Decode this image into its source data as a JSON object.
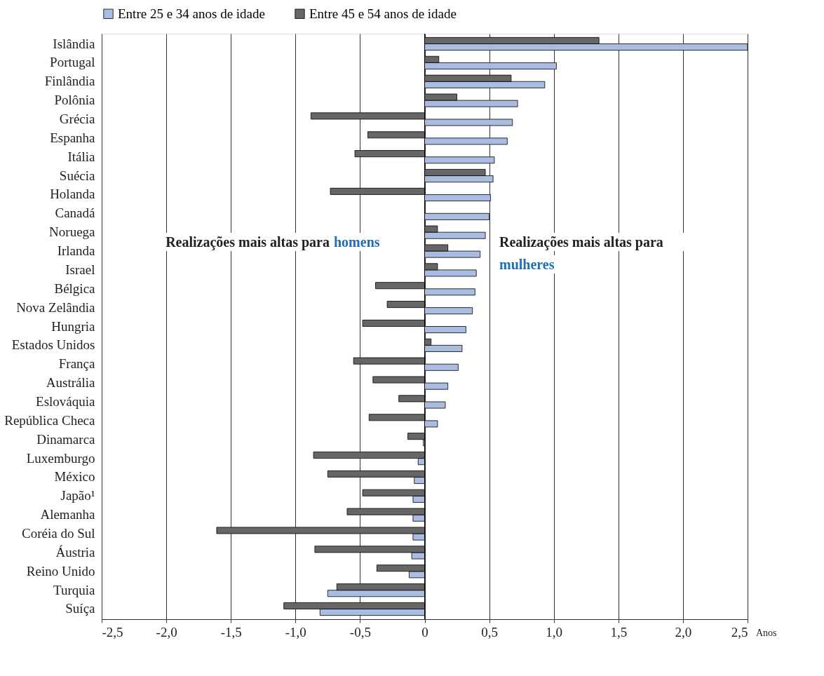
{
  "chart_data": {
    "type": "bar",
    "orientation": "horizontal",
    "categories": [
      "Islândia",
      "Portugal",
      "Finlândia",
      "Polônia",
      "Grécia",
      "Espanha",
      "Itália",
      "Suécia",
      "Holanda",
      "Canadá",
      "Noruega",
      "Irlanda",
      "Israel",
      "Bélgica",
      "Nova Zelândia",
      "Hungria",
      "Estados Unidos",
      "França",
      "Austrália",
      "Eslováquia",
      "República Checa",
      "Dinamarca",
      "Luxemburgo",
      "México",
      "Japão¹",
      "Alemanha",
      "Coréia do Sul",
      "Áustria",
      "Reino Unido",
      "Turquia",
      "Suíça"
    ],
    "series": [
      {
        "name": "Entre 25 e 34 anos de idade",
        "color": "#a9bde3",
        "values": [
          2.5,
          1.02,
          0.93,
          0.72,
          0.68,
          0.64,
          0.54,
          0.53,
          0.51,
          0.5,
          0.47,
          0.43,
          0.4,
          0.39,
          0.37,
          0.32,
          0.29,
          0.26,
          0.18,
          0.16,
          0.1,
          -0.01,
          -0.05,
          -0.08,
          -0.09,
          -0.09,
          -0.09,
          -0.1,
          -0.12,
          -0.75,
          -0.81
        ]
      },
      {
        "name": "Entre 45 e 54 anos de idade",
        "color": "#666666",
        "values": [
          1.35,
          0.11,
          0.67,
          0.25,
          -0.88,
          -0.44,
          -0.54,
          0.47,
          -0.73,
          null,
          0.1,
          0.18,
          0.1,
          -0.38,
          -0.29,
          -0.48,
          0.05,
          -0.55,
          -0.4,
          -0.2,
          -0.43,
          -0.13,
          -0.86,
          -0.75,
          -0.48,
          -0.6,
          -1.61,
          -0.85,
          -0.37,
          -0.68,
          -1.09
        ]
      }
    ],
    "xlim": [
      -2.5,
      2.5
    ],
    "xticks": [
      {
        "value": -2.5,
        "label": "-2,5"
      },
      {
        "value": -2.0,
        "label": "-2,0"
      },
      {
        "value": -1.5,
        "label": "-1,5"
      },
      {
        "value": -1.0,
        "label": "-1,0"
      },
      {
        "value": -0.5,
        "label": "-0,5"
      },
      0,
      {
        "value": 0.5,
        "label": "0,5"
      },
      {
        "value": 1.0,
        "label": "1,0"
      },
      {
        "value": 1.5,
        "label": "1,5"
      },
      {
        "value": 2.0,
        "label": "2,0"
      },
      {
        "value": 2.5,
        "label": "2,5"
      }
    ],
    "xlabel": "Anos",
    "grid": "x",
    "legend": "top left",
    "annotations": [
      "Realizações mais altas para homens",
      "Realizações mais altas para mulheres"
    ]
  }
}
